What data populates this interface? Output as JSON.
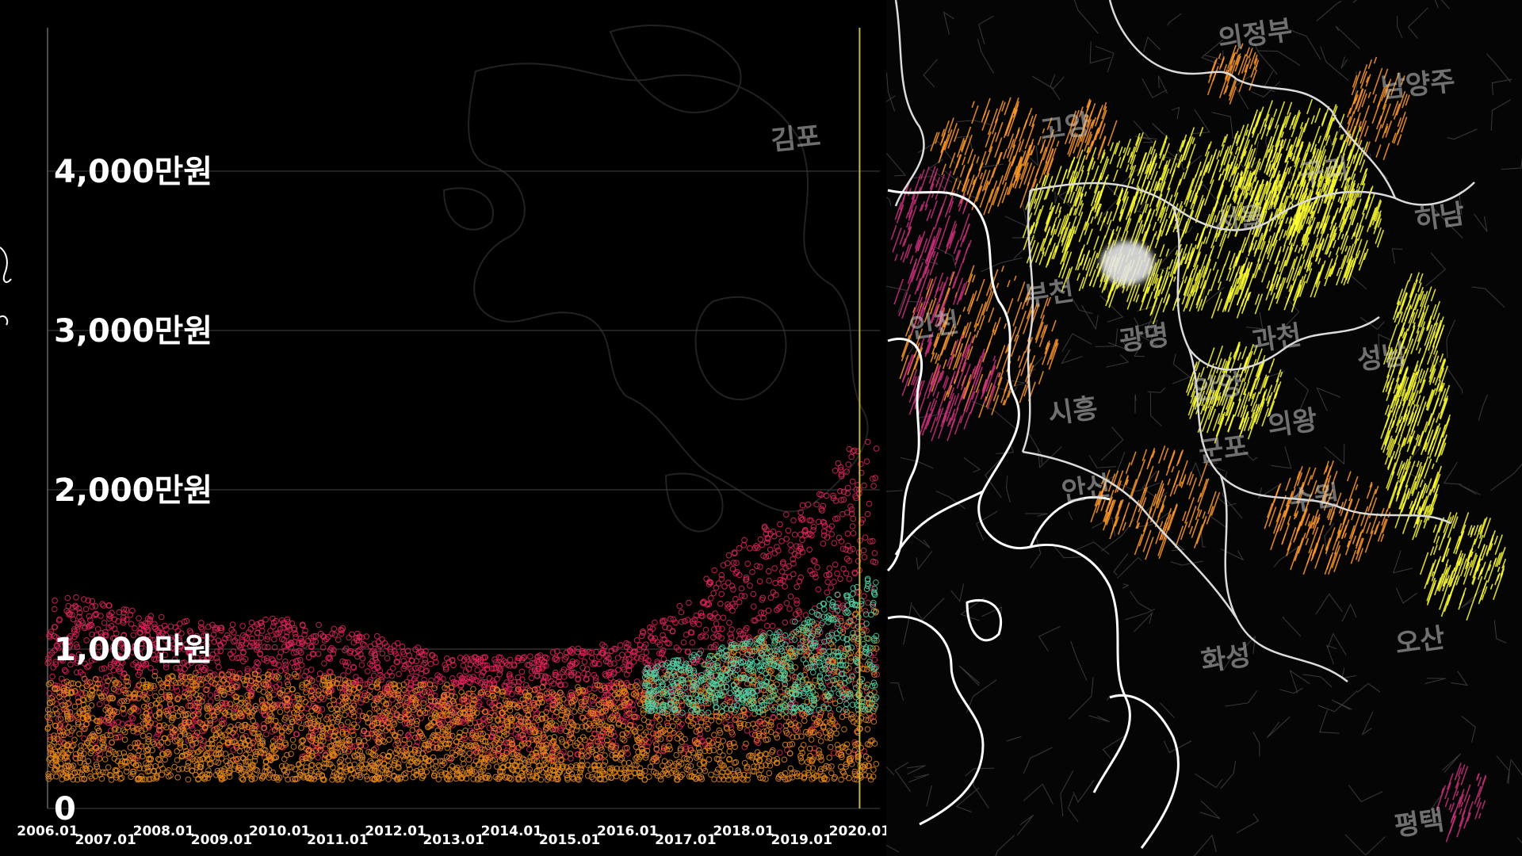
{
  "chart_data": {
    "type": "scatter",
    "title": "",
    "xlabel": "",
    "ylabel": "",
    "y_ticks": [
      {
        "value": 0,
        "label": "0"
      },
      {
        "value": 1000,
        "label": "1,000만원"
      },
      {
        "value": 2000,
        "label": "2,000만원"
      },
      {
        "value": 3000,
        "label": "3,000만원"
      },
      {
        "value": 4000,
        "label": "4,000만원"
      }
    ],
    "ylim": [
      0,
      4900
    ],
    "x_ticks": [
      {
        "value": 2006,
        "label": "2006.01"
      },
      {
        "value": 2007,
        "label": "2007.01"
      },
      {
        "value": 2008,
        "label": "2008.01"
      },
      {
        "value": 2009,
        "label": "2009.01"
      },
      {
        "value": 2010,
        "label": "2010.01"
      },
      {
        "value": 2011,
        "label": "2011.01"
      },
      {
        "value": 2012,
        "label": "2012.01"
      },
      {
        "value": 2013,
        "label": "2013.01"
      },
      {
        "value": 2014,
        "label": "2014.01"
      },
      {
        "value": 2015,
        "label": "2015.01"
      },
      {
        "value": 2016,
        "label": "2016.01"
      },
      {
        "value": 2017,
        "label": "2017.01"
      },
      {
        "value": 2018,
        "label": "2018.01"
      },
      {
        "value": 2019,
        "label": "2019.01"
      },
      {
        "value": 2020,
        "label": "2020.01"
      }
    ],
    "xlim": [
      2006,
      2020.35
    ],
    "current_time_marker": 2020.0,
    "grid": true,
    "series": [
      {
        "color": "#e8245c",
        "band": [
          [
            2006,
            1350
          ],
          [
            2007,
            1300
          ],
          [
            2008,
            1200
          ],
          [
            2009,
            1150
          ],
          [
            2010,
            1200
          ],
          [
            2011,
            1150
          ],
          [
            2012,
            1050
          ],
          [
            2013,
            950
          ],
          [
            2014,
            950
          ],
          [
            2015,
            1000
          ],
          [
            2016,
            1050
          ],
          [
            2017,
            1300
          ],
          [
            2018,
            1700
          ],
          [
            2019,
            1900
          ],
          [
            2020,
            2350
          ]
        ],
        "floor": 300
      },
      {
        "color": "#e88a1a",
        "band": [
          [
            2006,
            800
          ],
          [
            2008,
            850
          ],
          [
            2010,
            850
          ],
          [
            2012,
            800
          ],
          [
            2014,
            750
          ],
          [
            2016,
            800
          ],
          [
            2017,
            900
          ],
          [
            2018,
            1050
          ],
          [
            2019,
            1150
          ],
          [
            2020,
            1250
          ]
        ],
        "floor": 180
      },
      {
        "color": "#52d6a8",
        "band": [
          [
            2016,
            850
          ],
          [
            2017,
            950
          ],
          [
            2018,
            1050
          ],
          [
            2019,
            1200
          ],
          [
            2020,
            1450
          ]
        ],
        "floor": 600,
        "start": 2016.3
      }
    ]
  },
  "map": {
    "regions": [
      {
        "name": "의정부"
      },
      {
        "name": "남양주"
      },
      {
        "name": "고양"
      },
      {
        "name": "구리"
      },
      {
        "name": "서울"
      },
      {
        "name": "하남"
      },
      {
        "name": "부천"
      },
      {
        "name": "인천"
      },
      {
        "name": "광명"
      },
      {
        "name": "과천"
      },
      {
        "name": "성남"
      },
      {
        "name": "안양"
      },
      {
        "name": "시흥"
      },
      {
        "name": "군포"
      },
      {
        "name": "의왕"
      },
      {
        "name": "안산"
      },
      {
        "name": "수원"
      },
      {
        "name": "화성"
      },
      {
        "name": "오산"
      },
      {
        "name": "평택"
      },
      {
        "name": "김포"
      }
    ],
    "colors": {
      "hot": "#ffff33",
      "warm": "#ff9a2a",
      "cool": "#c8307a",
      "boundary": "#ffffff"
    }
  }
}
